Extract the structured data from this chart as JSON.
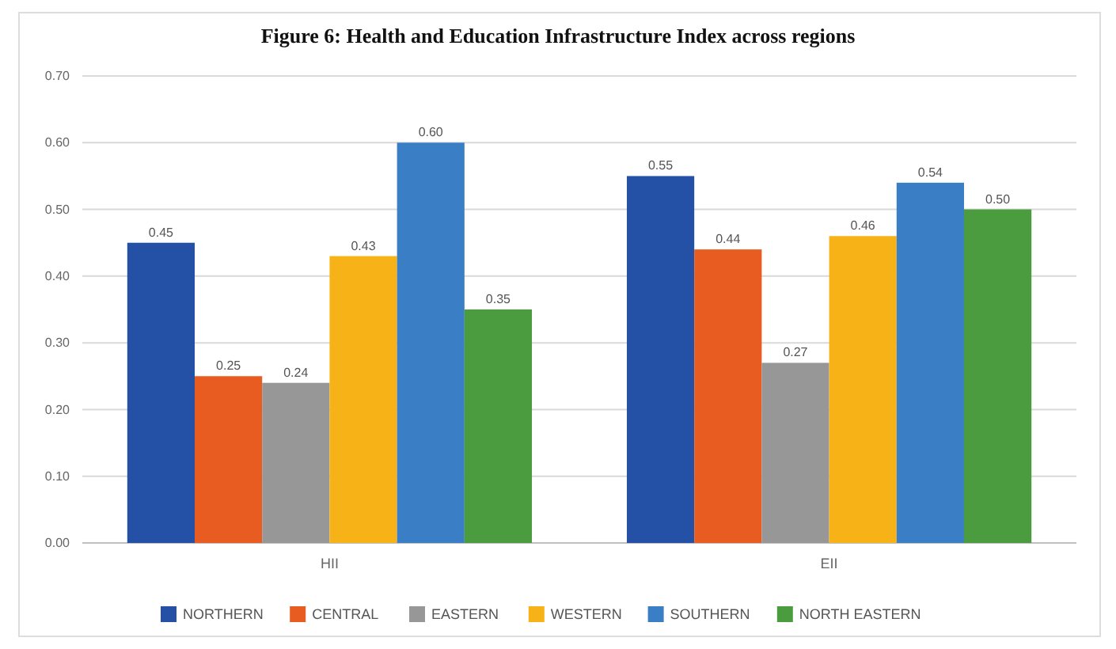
{
  "chart_data": {
    "type": "bar",
    "title": "Figure 6: Health and Education Infrastructure Index across regions",
    "categories": [
      "HII",
      "EII"
    ],
    "series": [
      {
        "name": "NORTHERN",
        "color": "#2451a6",
        "values": [
          0.45,
          0.55
        ],
        "value_labels": [
          "0.45",
          "0.55"
        ]
      },
      {
        "name": "CENTRAL",
        "color": "#e95c21",
        "values": [
          0.25,
          0.44
        ],
        "value_labels": [
          "0.25",
          "0.44"
        ]
      },
      {
        "name": "EASTERN",
        "color": "#979797",
        "values": [
          0.24,
          0.27
        ],
        "value_labels": [
          "0.24",
          "0.27"
        ]
      },
      {
        "name": "WESTERN",
        "color": "#f6b217",
        "values": [
          0.43,
          0.46
        ],
        "value_labels": [
          "0.43",
          "0.46"
        ]
      },
      {
        "name": "SOUTHERN",
        "color": "#3a7fc6",
        "values": [
          0.6,
          0.54
        ],
        "value_labels": [
          "0.60",
          "0.54"
        ]
      },
      {
        "name": "NORTH EASTERN",
        "color": "#4a9c3f",
        "values": [
          0.35,
          0.5
        ],
        "value_labels": [
          "0.35",
          "0.50"
        ]
      }
    ],
    "ylim": [
      0,
      0.7
    ],
    "yticks": [
      {
        "value": 0,
        "label": "0.00"
      },
      {
        "value": 0.1,
        "label": "0.10"
      },
      {
        "value": 0.2,
        "label": "0.20"
      },
      {
        "value": 0.3,
        "label": "0.30"
      },
      {
        "value": 0.4,
        "label": "0.40"
      },
      {
        "value": 0.5,
        "label": "0.50"
      },
      {
        "value": 0.6,
        "label": "0.60"
      },
      {
        "value": 0.7,
        "label": "0.70"
      }
    ],
    "grid": "y",
    "legend": "bottom"
  }
}
